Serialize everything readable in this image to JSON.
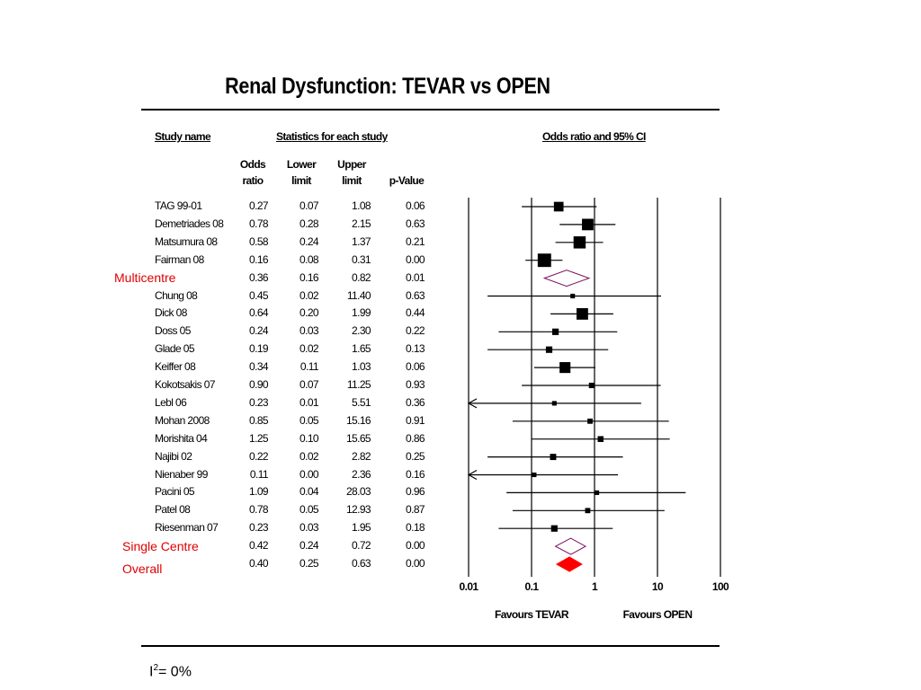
{
  "slide": {
    "title": "Renal Dysfunction: TEVAR vs OPEN",
    "heterogeneity": {
      "prefix": "I",
      "sup": "2",
      "suffix": "= 0%"
    }
  },
  "table": {
    "study_header": "Study name",
    "stats_header": "Statistics for each study",
    "plot_header": "Odds ratio and 95% CI",
    "columns": {
      "odds": [
        "Odds",
        "ratio"
      ],
      "lower": [
        "Lower",
        "limit"
      ],
      "upper": [
        "Upper",
        "limit"
      ],
      "p": "p-Value"
    },
    "group_labels": {
      "multicentre": "Multicentre",
      "single": "Single Centre",
      "overall": "Overall"
    }
  },
  "chart_data": {
    "type": "forest",
    "x_scale": "log",
    "x_ticks": [
      "0.01",
      "0.1",
      "1",
      "10",
      "100"
    ],
    "xlim": [
      0.01,
      100
    ],
    "x_favours": {
      "left": "Favours TEVAR",
      "right": "Favours OPEN"
    },
    "colors": {
      "study": "#000000",
      "subtotal_border": "#7a1060",
      "overall": "#ff0000",
      "group_label": "#e00000"
    },
    "rows": [
      {
        "kind": "study",
        "name": "TAG 99-01",
        "or": "0.27",
        "lower": "0.07",
        "upper": "1.08",
        "p": "0.06",
        "weight": 0.55
      },
      {
        "kind": "study",
        "name": "Demetriades 08",
        "or": "0.78",
        "lower": "0.28",
        "upper": "2.15",
        "p": "0.63",
        "weight": 0.7
      },
      {
        "kind": "study",
        "name": "Matsumura 08",
        "or": "0.58",
        "lower": "0.24",
        "upper": "1.37",
        "p": "0.21",
        "weight": 0.75
      },
      {
        "kind": "study",
        "name": "Fairman 08",
        "or": "0.16",
        "lower": "0.08",
        "upper": "0.31",
        "p": "0.00",
        "weight": 0.85
      },
      {
        "kind": "subtotal",
        "name": "",
        "or": "0.36",
        "lower": "0.16",
        "upper": "0.82",
        "p": "0.01"
      },
      {
        "kind": "study",
        "name": "Chung 08",
        "or": "0.45",
        "lower": "0.02",
        "upper": "11.40",
        "p": "0.63",
        "weight": 0.15
      },
      {
        "kind": "study",
        "name": "Dick 08",
        "or": "0.64",
        "lower": "0.20",
        "upper": "1.99",
        "p": "0.44",
        "weight": 0.7
      },
      {
        "kind": "study",
        "name": "Doss 05",
        "or": "0.24",
        "lower": "0.03",
        "upper": "2.30",
        "p": "0.22",
        "weight": 0.3
      },
      {
        "kind": "study",
        "name": "Glade 05",
        "or": "0.19",
        "lower": "0.02",
        "upper": "1.65",
        "p": "0.13",
        "weight": 0.3
      },
      {
        "kind": "study",
        "name": "Keiffer 08",
        "or": "0.34",
        "lower": "0.11",
        "upper": "1.03",
        "p": "0.06",
        "weight": 0.65
      },
      {
        "kind": "study",
        "name": "Kokotsakis 07",
        "or": "0.90",
        "lower": "0.07",
        "upper": "11.25",
        "p": "0.93",
        "weight": 0.22
      },
      {
        "kind": "study",
        "name": "Lebl 06",
        "or": "0.23",
        "lower": "0.01",
        "upper": "5.51",
        "p": "0.36",
        "weight": 0.15,
        "arrow_left": true
      },
      {
        "kind": "study",
        "name": "Mohan 2008",
        "or": "0.85",
        "lower": "0.05",
        "upper": "15.16",
        "p": "0.91",
        "weight": 0.2
      },
      {
        "kind": "study",
        "name": "Morishita 04",
        "or": "1.25",
        "lower": "0.10",
        "upper": "15.65",
        "p": "0.86",
        "weight": 0.25
      },
      {
        "kind": "study",
        "name": "Najibi 02",
        "or": "0.22",
        "lower": "0.02",
        "upper": "2.82",
        "p": "0.25",
        "weight": 0.28
      },
      {
        "kind": "study",
        "name": "Nienaber 99",
        "or": "0.11",
        "lower": "0.00",
        "upper": "2.36",
        "p": "0.16",
        "weight": 0.15,
        "arrow_left": true
      },
      {
        "kind": "study",
        "name": "Pacini 05",
        "or": "1.09",
        "lower": "0.04",
        "upper": "28.03",
        "p": "0.96",
        "weight": 0.15
      },
      {
        "kind": "study",
        "name": "Patel 08",
        "or": "0.78",
        "lower": "0.05",
        "upper": "12.93",
        "p": "0.87",
        "weight": 0.2
      },
      {
        "kind": "study",
        "name": "Riesenman 07",
        "or": "0.23",
        "lower": "0.03",
        "upper": "1.95",
        "p": "0.18",
        "weight": 0.3
      },
      {
        "kind": "subtotal",
        "name": "",
        "or": "0.42",
        "lower": "0.24",
        "upper": "0.72",
        "p": "0.00"
      },
      {
        "kind": "overall",
        "name": "",
        "or": "0.40",
        "lower": "0.25",
        "upper": "0.63",
        "p": "0.00"
      }
    ]
  }
}
